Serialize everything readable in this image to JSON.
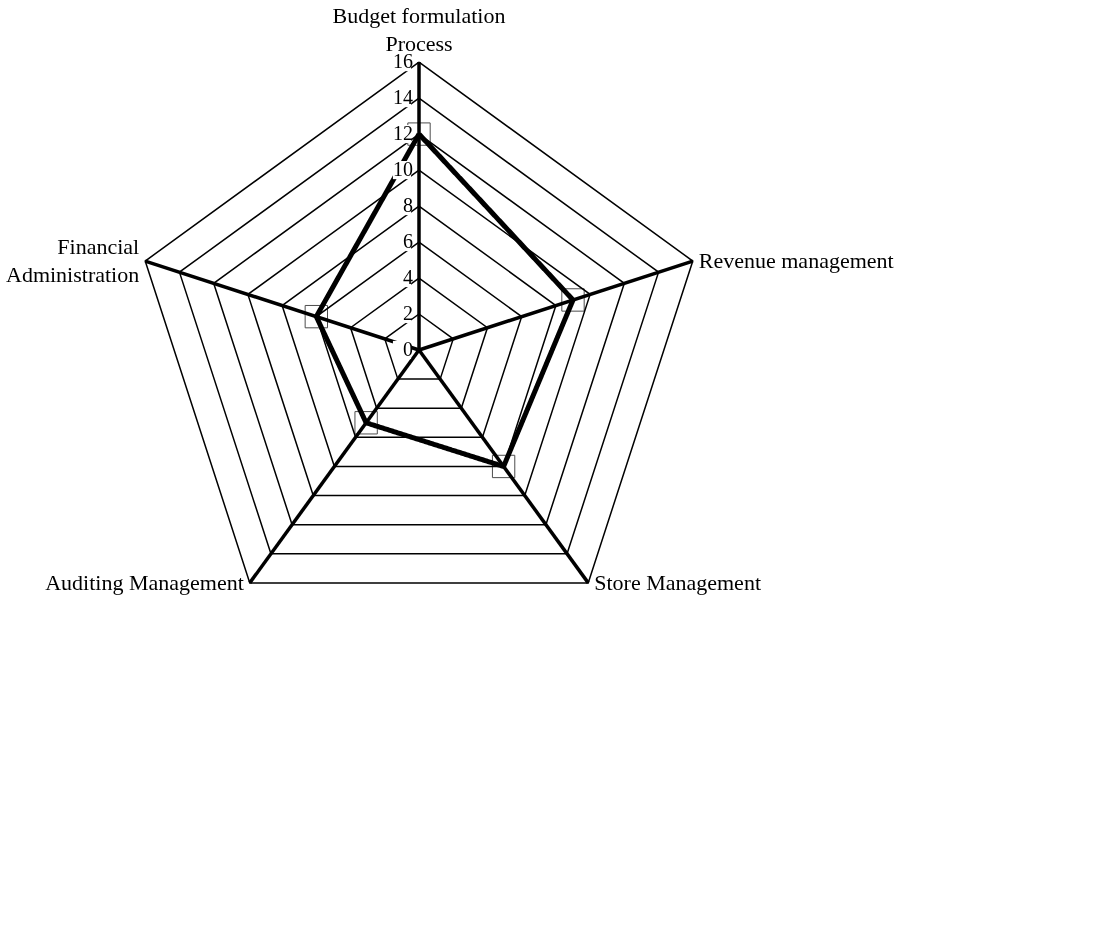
{
  "chart_data": {
    "type": "radar",
    "categories": [
      "Budget formulation\nProcess",
      "Revenue management",
      "Store Management",
      "Auditing Management",
      "Financial\nAdministration"
    ],
    "series": [
      {
        "color": "#000000",
        "values": [
          12,
          9,
          8,
          5,
          6
        ]
      }
    ],
    "ylim": [
      0,
      16
    ],
    "yticks": [
      0,
      2,
      4,
      6,
      8,
      10,
      12,
      14,
      16
    ],
    "grid": true,
    "marker": "square",
    "line_style": "solid"
  }
}
